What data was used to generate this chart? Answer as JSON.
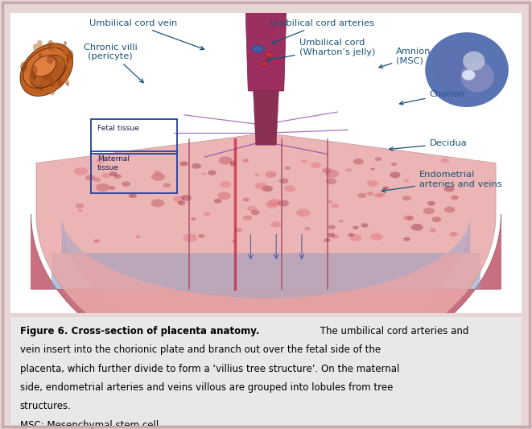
{
  "figure_width": 6.61,
  "figure_height": 5.33,
  "dpi": 100,
  "outer_bg": "#e8d5d5",
  "inner_bg": "#ffffff",
  "caption_bg": "#e8e8e8",
  "label_color": "#1a5276",
  "arrow_color": "#1a5276",
  "caption_bold": "Figure 6. Cross-section of placenta anatomy.",
  "caption_lines": [
    " The umbilical cord arteries and",
    "vein insert into the chorionic plate and branch out over the fetal side of the",
    "placenta, which further divide to form a ‘villius tree structure’. On the maternal",
    "side, endometrial arteries and veins villous are grouped into lobules from tree",
    "structures.",
    "MSC: Mesenchymal stem cell."
  ],
  "arrow_labels": [
    {
      "text": "Umbilical cord vein",
      "tpos": [
        0.24,
        0.965
      ],
      "aend": [
        0.385,
        0.875
      ],
      "ha": "center"
    },
    {
      "text": "Umbilical cord arteries",
      "tpos": [
        0.61,
        0.965
      ],
      "aend": [
        0.505,
        0.895
      ],
      "ha": "center"
    },
    {
      "text": "Chronic villi\n(pericyte)",
      "tpos": [
        0.195,
        0.87
      ],
      "aend": [
        0.265,
        0.76
      ],
      "ha": "center"
    },
    {
      "text": "Umbilical cord\n(Wharton’s jelly)",
      "tpos": [
        0.565,
        0.885
      ],
      "aend": [
        0.495,
        0.84
      ],
      "ha": "left"
    },
    {
      "text": "Amnion\n(MSC)",
      "tpos": [
        0.755,
        0.855
      ],
      "aend": [
        0.715,
        0.815
      ],
      "ha": "left"
    },
    {
      "text": "Chorion",
      "tpos": [
        0.82,
        0.73
      ],
      "aend": [
        0.755,
        0.695
      ],
      "ha": "left"
    },
    {
      "text": "Decidua",
      "tpos": [
        0.82,
        0.565
      ],
      "aend": [
        0.735,
        0.545
      ],
      "ha": "left"
    },
    {
      "text": "Endometrial\narteries and veins",
      "tpos": [
        0.8,
        0.445
      ],
      "aend": [
        0.72,
        0.405
      ],
      "ha": "left"
    }
  ]
}
